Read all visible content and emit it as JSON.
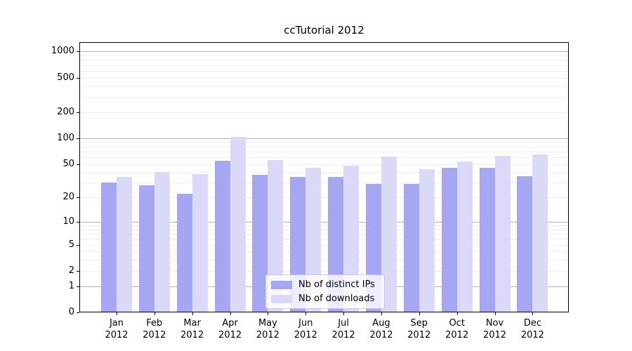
{
  "figure": {
    "background": "#ffffff"
  },
  "chart_data": {
    "type": "bar",
    "title": "ccTutorial 2012",
    "categories": [
      "Jan",
      "Feb",
      "Mar",
      "Apr",
      "May",
      "Jun",
      "Jul",
      "Aug",
      "Sep",
      "Oct",
      "Nov",
      "Dec"
    ],
    "category_year": "2012",
    "series": [
      {
        "name": "Nb of distinct IPs",
        "color": "#a6a6f2",
        "values": [
          30,
          28,
          22,
          54,
          37,
          35,
          35,
          29,
          29,
          45,
          45,
          36
        ]
      },
      {
        "name": "Nb of downloads",
        "color": "#dadaf8",
        "values": [
          35,
          40,
          38,
          103,
          56,
          45,
          48,
          61,
          43,
          53,
          62,
          64
        ]
      }
    ],
    "yscale": "log1p",
    "ylim": [
      0,
      1280
    ],
    "ytick_values": [
      0,
      1,
      2,
      5,
      10,
      20,
      50,
      100,
      200,
      500,
      1000
    ],
    "ytick_labels": [
      "0",
      "1",
      "2",
      "5",
      "10",
      "20",
      "50",
      "100",
      "200",
      "500",
      "1000"
    ],
    "major_grid_values": [
      1,
      10,
      100,
      1000
    ],
    "minor_grid_values": [
      2,
      3,
      4,
      5,
      6,
      7,
      8,
      9,
      20,
      30,
      40,
      50,
      60,
      70,
      80,
      90,
      200,
      300,
      400,
      500,
      600,
      700,
      800,
      900
    ],
    "grid": "horizontal",
    "legend_position": "lower center",
    "colors": {
      "major_grid": "#b4b4b4",
      "minor_grid": "#ededed",
      "spine": "#000000",
      "text": "#000000"
    }
  }
}
